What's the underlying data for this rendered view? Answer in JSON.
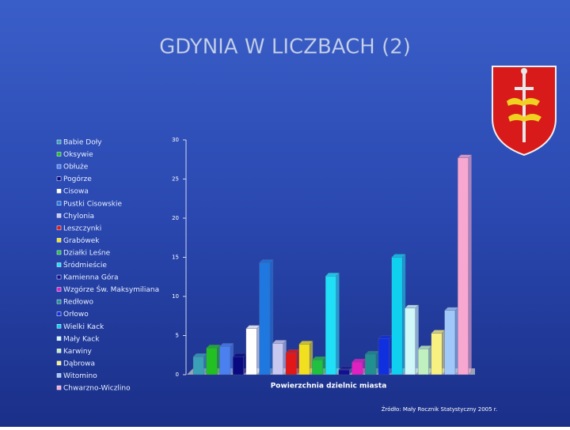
{
  "chart_data": {
    "type": "bar",
    "title": "GDYNIA W LICZBACH (2)",
    "xlabel": "Powierzchnia dzielnic miasta",
    "source": "Źródło: Mały Rocznik Statystyczny 2005 r.",
    "categories": [
      "Babie Doły",
      "Oksywie",
      "Obłuże",
      "Pogórze",
      "Cisowa",
      "Pustki Cisowskie",
      "Chylonia",
      "Leszczynki",
      "Grabówek",
      "Działki Leśne",
      "Śródmieście",
      "Kamienna Góra",
      "Wzgórze Św. Maksymiliana",
      "Redłowo",
      "Orłowo",
      "Wielki Kack",
      "Mały Kack",
      "Karwiny",
      "Dąbrowa",
      "Witomino",
      "Chwarzno-Wiczlino"
    ],
    "values": [
      2.3,
      3.4,
      3.6,
      2.3,
      5.9,
      14.3,
      4.0,
      2.8,
      3.9,
      1.9,
      12.6,
      0.6,
      1.6,
      2.6,
      4.6,
      15.0,
      8.5,
      3.3,
      5.3,
      8.2,
      27.7
    ],
    "colors": [
      "#3aa0b8",
      "#22c022",
      "#4a80f0",
      "#0a0a80",
      "#ffffff",
      "#1e78e0",
      "#c8c8f0",
      "#e01818",
      "#f0e020",
      "#20c040",
      "#20e0f8",
      "#101090",
      "#e020c0",
      "#209090",
      "#1030e0",
      "#10d0f0",
      "#d0f8f8",
      "#c0f0c0",
      "#f8f080",
      "#a0c8f8",
      "#f8a8d0"
    ],
    "ylim": [
      0,
      30
    ],
    "yticks": [
      0,
      5,
      10,
      15,
      20,
      25,
      30
    ],
    "legend": "left"
  }
}
